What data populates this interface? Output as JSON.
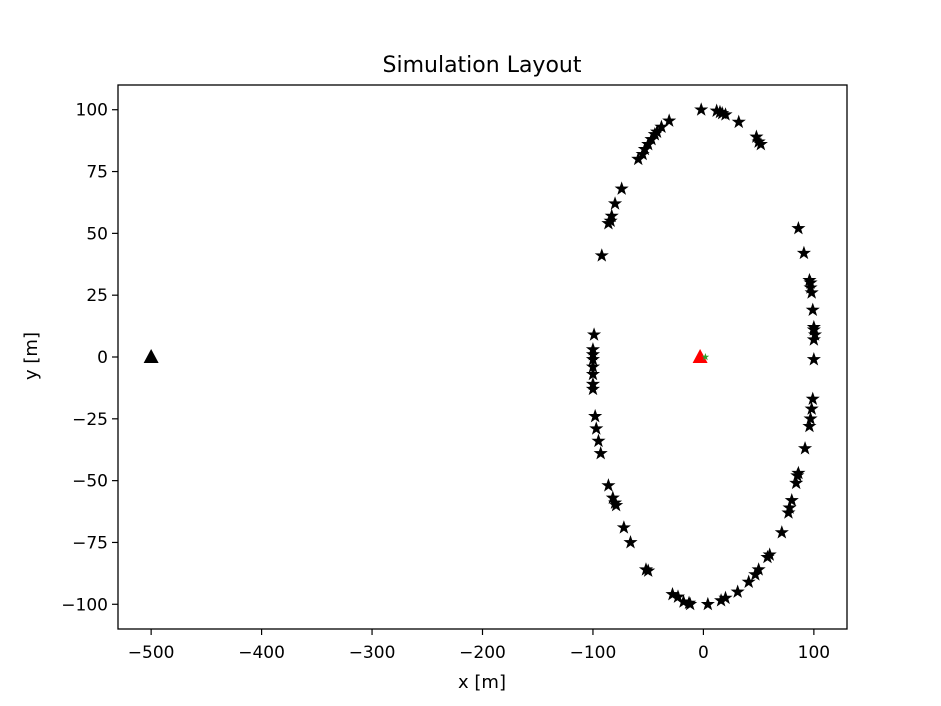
{
  "chart_data": {
    "type": "scatter",
    "title": "Simulation Layout",
    "xlabel": "x [m]",
    "ylabel": "y [m]",
    "xlim": [
      -530,
      130
    ],
    "ylim": [
      -110,
      110
    ],
    "xticks": [
      -500,
      -400,
      -300,
      -200,
      -100,
      0,
      100
    ],
    "yticks": [
      -100,
      -75,
      -50,
      -25,
      0,
      25,
      50,
      75,
      100
    ],
    "xtick_labels": [
      "−500",
      "−400",
      "−300",
      "−200",
      "−100",
      "0",
      "100"
    ],
    "ytick_labels": [
      "−100",
      "−75",
      "−50",
      "−25",
      "0",
      "25",
      "50",
      "75",
      "100"
    ],
    "grid": false,
    "series": [
      {
        "marker": "star",
        "color": "#000000",
        "points": [
          [
            -2,
            100
          ],
          [
            12,
            99.5
          ],
          [
            15,
            99
          ],
          [
            17,
            98.5
          ],
          [
            20,
            98
          ],
          [
            32,
            95
          ],
          [
            48,
            89
          ],
          [
            50,
            87
          ],
          [
            52,
            86
          ],
          [
            -31,
            95.5
          ],
          [
            -38,
            93
          ],
          [
            -42,
            91
          ],
          [
            -44,
            90
          ],
          [
            -47,
            88
          ],
          [
            -50,
            86
          ],
          [
            -53,
            84
          ],
          [
            -55,
            82
          ],
          [
            -59,
            80
          ],
          [
            -74,
            68
          ],
          [
            -80,
            62
          ],
          [
            -83,
            57
          ],
          [
            -84,
            55
          ],
          [
            -86,
            54
          ],
          [
            -92,
            41
          ],
          [
            -99,
            9
          ],
          [
            -100,
            3
          ],
          [
            -100,
            1
          ],
          [
            -100,
            -1
          ],
          [
            -100,
            -4
          ],
          [
            -100,
            -7
          ],
          [
            -100,
            -11
          ],
          [
            -100,
            -13
          ],
          [
            -98,
            -24
          ],
          [
            -97,
            -29
          ],
          [
            -95,
            -34
          ],
          [
            -93,
            -39
          ],
          [
            -86,
            -52
          ],
          [
            -82,
            -57
          ],
          [
            -80,
            -59
          ],
          [
            -79,
            -60
          ],
          [
            -72,
            -69
          ],
          [
            -66,
            -75
          ],
          [
            -52,
            -86
          ],
          [
            -50,
            -86.5
          ],
          [
            -28,
            -96
          ],
          [
            -23,
            -97
          ],
          [
            -18,
            -99
          ],
          [
            -13,
            -99.5
          ],
          [
            -12,
            -100
          ],
          [
            4,
            -100
          ],
          [
            16,
            -98.5
          ],
          [
            20,
            -97.5
          ],
          [
            31,
            -95
          ],
          [
            41,
            -91
          ],
          [
            47,
            -88
          ],
          [
            50,
            -86
          ],
          [
            58,
            -81
          ],
          [
            60,
            -80
          ],
          [
            71,
            -71
          ],
          [
            77,
            -63
          ],
          [
            78,
            -61
          ],
          [
            80,
            -58
          ],
          [
            84,
            -51
          ],
          [
            85,
            -48
          ],
          [
            86,
            -47
          ],
          [
            92,
            -37
          ],
          [
            96,
            -28
          ],
          [
            97,
            -25
          ],
          [
            98,
            -21
          ],
          [
            99,
            -17
          ],
          [
            100,
            -1
          ],
          [
            100,
            7
          ],
          [
            101,
            9
          ],
          [
            100,
            11
          ],
          [
            100,
            12
          ],
          [
            99,
            19
          ],
          [
            98,
            26
          ],
          [
            97,
            28
          ],
          [
            97,
            30
          ],
          [
            96,
            31
          ],
          [
            91,
            42
          ],
          [
            86,
            52
          ]
        ]
      },
      {
        "marker": "triangle",
        "color": "#000000",
        "points": [
          [
            -500,
            0
          ]
        ]
      },
      {
        "marker": "triangle",
        "color": "#ff0000",
        "points": [
          [
            -3,
            0
          ]
        ]
      },
      {
        "marker": "point",
        "color": "#2ca02c",
        "points": [
          [
            0,
            0
          ]
        ]
      }
    ]
  }
}
